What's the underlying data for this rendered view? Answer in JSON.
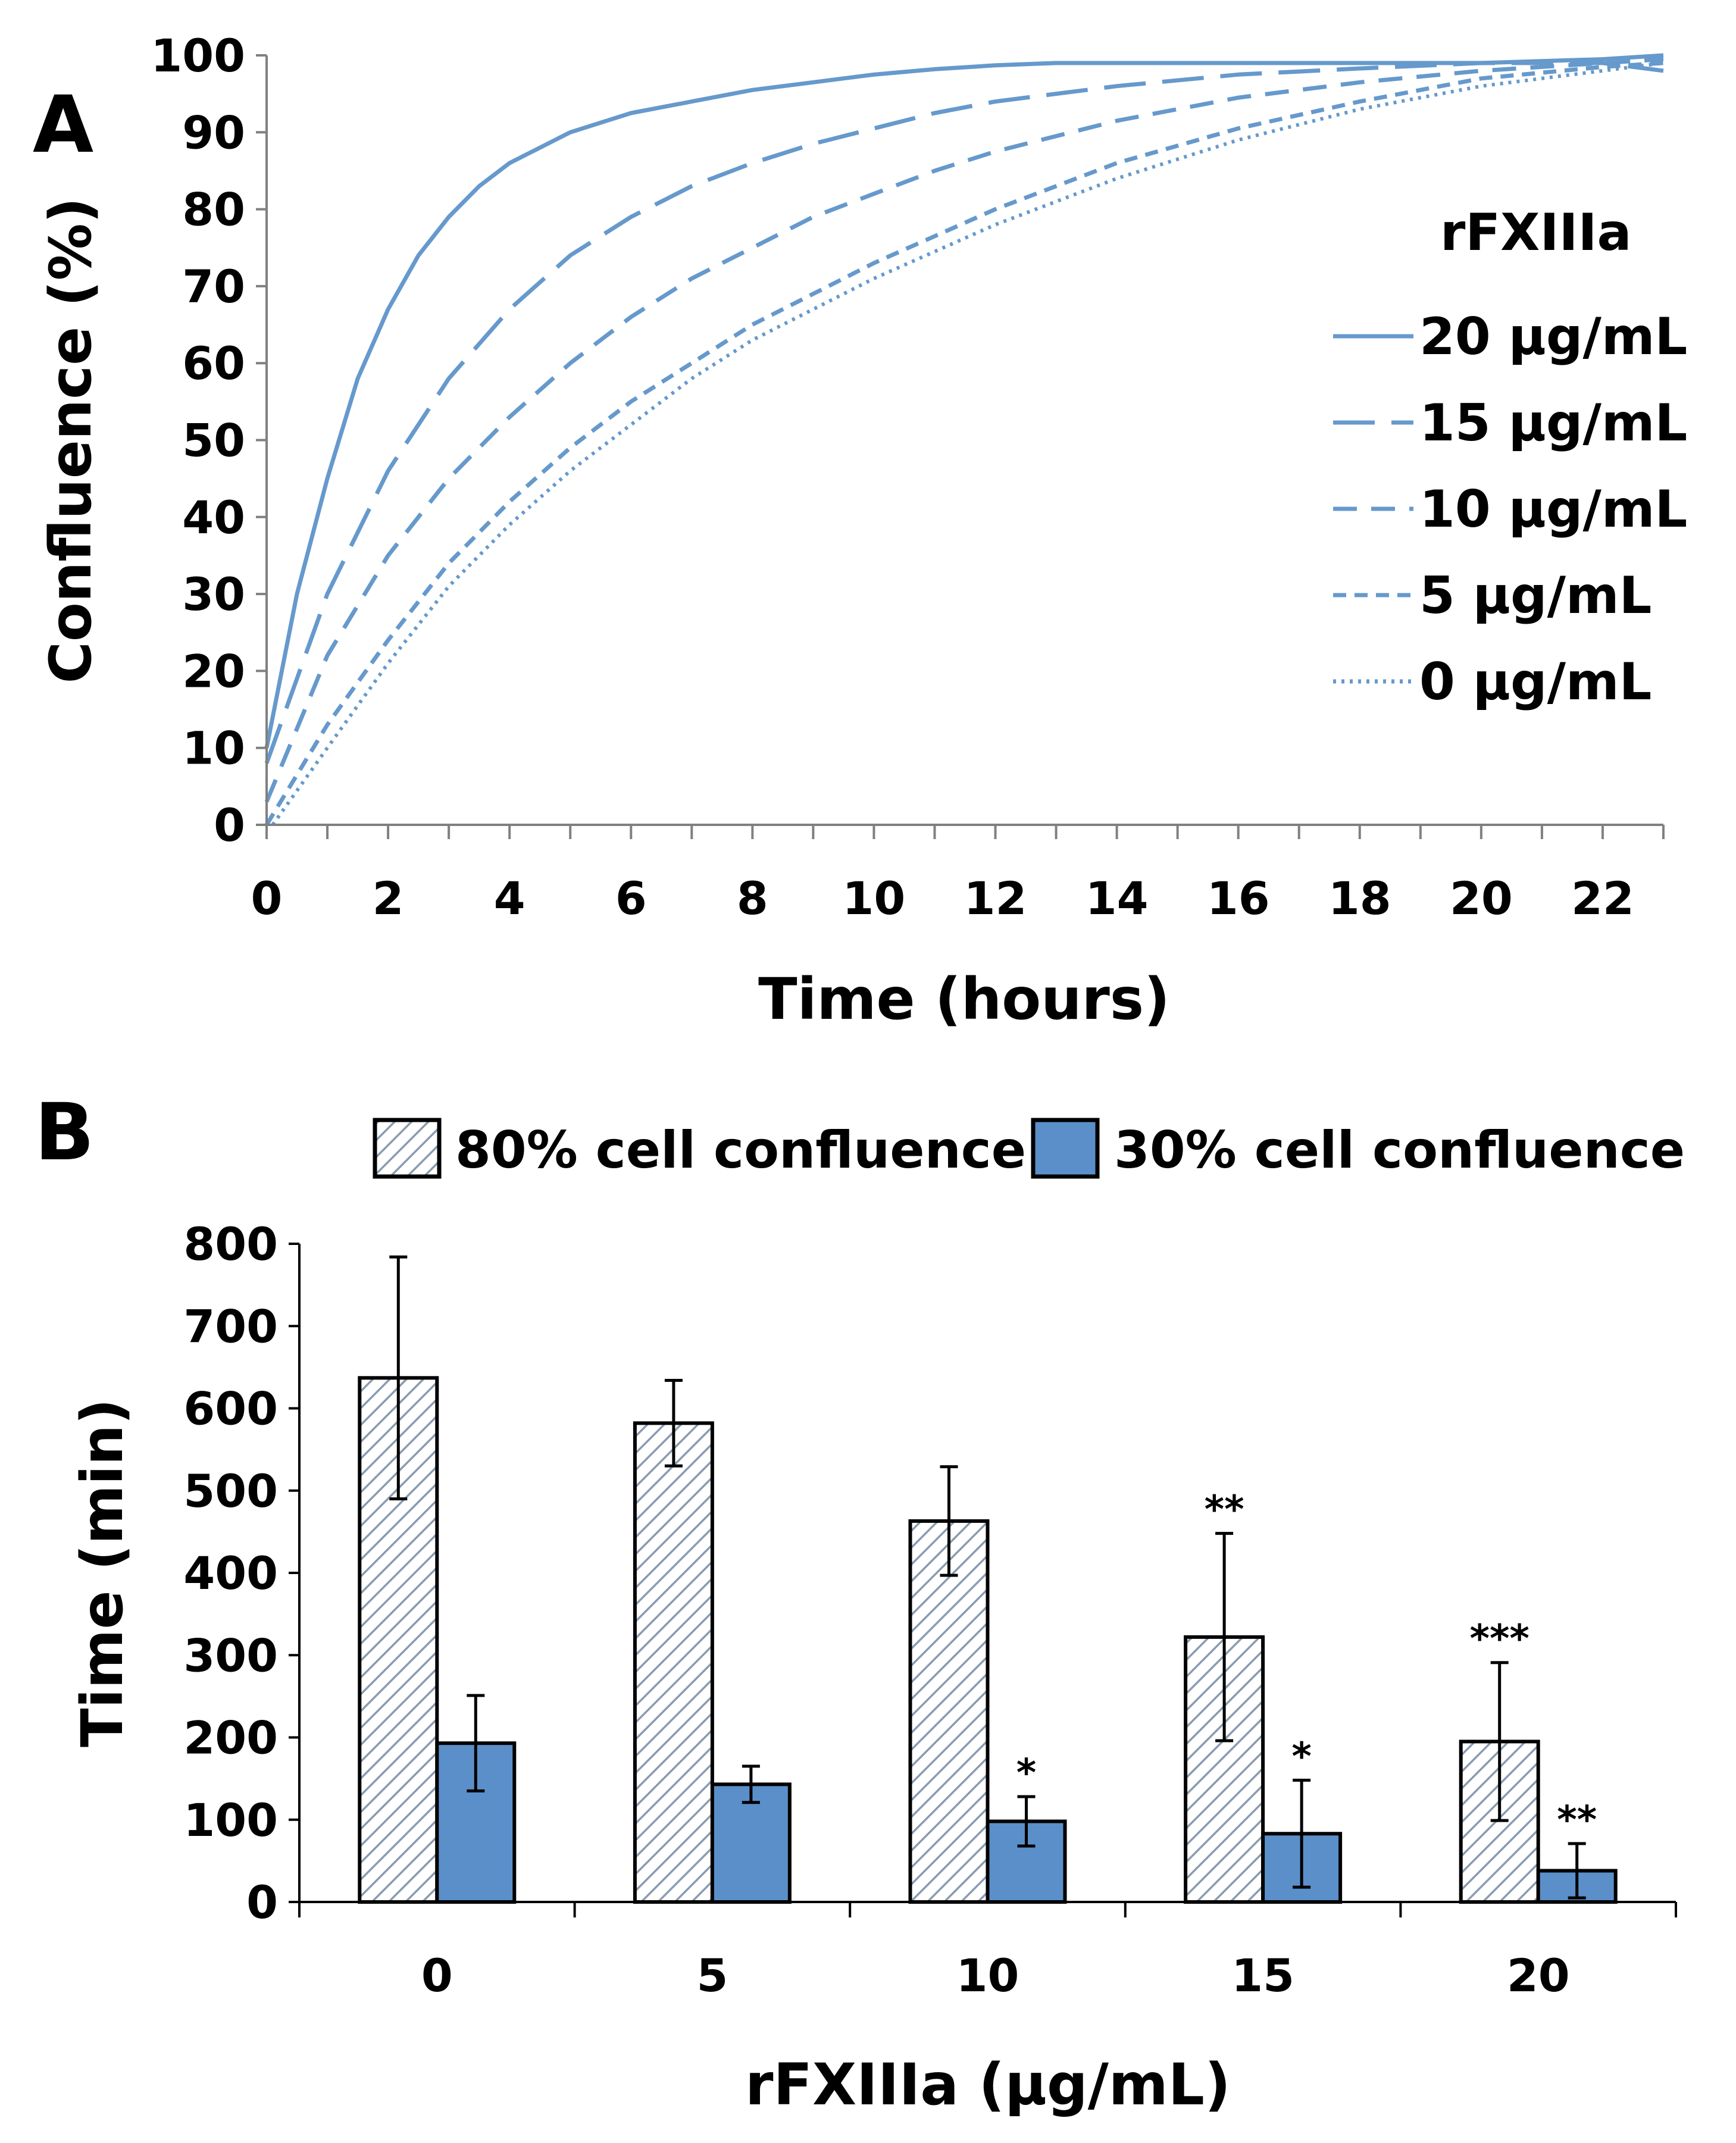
{
  "chart_data": [
    {
      "panel": "A",
      "type": "line",
      "xlabel": "Time (hours)",
      "ylabel": "Confluence (%)",
      "xlim": [
        0,
        23
      ],
      "ylim": [
        0,
        100
      ],
      "xticks": [
        0,
        2,
        4,
        6,
        8,
        10,
        12,
        14,
        16,
        18,
        20,
        22
      ],
      "yticks": [
        0,
        10,
        20,
        30,
        40,
        50,
        60,
        70,
        80,
        90,
        100
      ],
      "grid": false,
      "legend_title": "rFXIIIa",
      "legend_position": "right",
      "color": "#6699CC",
      "series": [
        {
          "name": "20 µg/mL",
          "dash": "solid",
          "x": [
            0,
            0.5,
            1,
            1.5,
            2,
            2.5,
            3,
            3.5,
            4,
            5,
            6,
            7,
            8,
            9,
            10,
            11,
            12,
            13,
            14,
            16,
            18,
            20,
            22,
            23
          ],
          "y": [
            10,
            30,
            45,
            58,
            67,
            74,
            79,
            83,
            86,
            90,
            92.5,
            94,
            95.5,
            96.5,
            97.5,
            98.2,
            98.7,
            99,
            99,
            99,
            99,
            99,
            99.5,
            100
          ]
        },
        {
          "name": "15 µg/mL",
          "dash": "longdash",
          "x": [
            0,
            1,
            2,
            3,
            4,
            5,
            6,
            7,
            8,
            9,
            10,
            11,
            12,
            14,
            16,
            18,
            20,
            22,
            23
          ],
          "y": [
            8,
            30,
            46,
            58,
            67,
            74,
            79,
            83,
            86,
            88.5,
            90.5,
            92.5,
            94,
            96,
            97.5,
            98.3,
            99,
            99,
            98
          ]
        },
        {
          "name": "10 µg/mL",
          "dash": "dash",
          "x": [
            0,
            1,
            2,
            3,
            4,
            5,
            6,
            7,
            8,
            9,
            10,
            11,
            12,
            14,
            16,
            18,
            20,
            22,
            23
          ],
          "y": [
            3,
            22,
            35,
            45,
            53,
            60,
            66,
            71,
            75,
            79,
            82,
            85,
            87.5,
            91.5,
            94.5,
            96.5,
            98,
            99,
            99.5
          ]
        },
        {
          "name": "5 µg/mL",
          "dash": "shortdash",
          "x": [
            0,
            1,
            2,
            3,
            4,
            5,
            6,
            7,
            8,
            9,
            10,
            11,
            12,
            14,
            16,
            18,
            20,
            22,
            23
          ],
          "y": [
            0,
            13,
            24,
            34,
            42,
            49,
            55,
            60,
            65,
            69,
            73,
            76.5,
            80,
            86,
            90.5,
            94,
            97,
            98.5,
            99
          ]
        },
        {
          "name": "0 µg/mL",
          "dash": "dot",
          "x": [
            0.1,
            1,
            2,
            3,
            4,
            5,
            6,
            7,
            8,
            9,
            10,
            11,
            12,
            14,
            16,
            18,
            20,
            22,
            23
          ],
          "y": [
            0,
            10,
            21,
            31,
            39,
            46,
            52,
            58,
            63,
            67,
            71,
            74.5,
            78,
            84,
            89,
            93,
            96,
            98,
            99
          ]
        }
      ]
    },
    {
      "panel": "B",
      "type": "bar",
      "xlabel": "rFXIIIa (µg/mL)",
      "ylabel": "Time (min)",
      "ylim": [
        0,
        800
      ],
      "yticks": [
        0,
        100,
        200,
        300,
        400,
        500,
        600,
        700,
        800
      ],
      "categories": [
        "0",
        "5",
        "10",
        "15",
        "20"
      ],
      "grid": false,
      "legend_position": "top",
      "series": [
        {
          "name": "80% cell confluence",
          "fill": "hatched",
          "values": [
            637,
            582,
            463,
            322,
            195
          ],
          "errors": [
            147,
            52,
            66,
            126,
            96
          ],
          "significance": [
            "",
            "",
            "",
            "**",
            "***"
          ]
        },
        {
          "name": "30% cell confluence",
          "fill": "solid",
          "color": "#5B8FC9",
          "values": [
            193,
            143,
            98,
            83,
            38
          ],
          "errors": [
            58,
            22,
            30,
            65,
            33
          ],
          "significance": [
            "",
            "",
            "*",
            "*",
            "**"
          ]
        }
      ]
    }
  ],
  "panel_labels": {
    "a": "A",
    "b": "B"
  }
}
